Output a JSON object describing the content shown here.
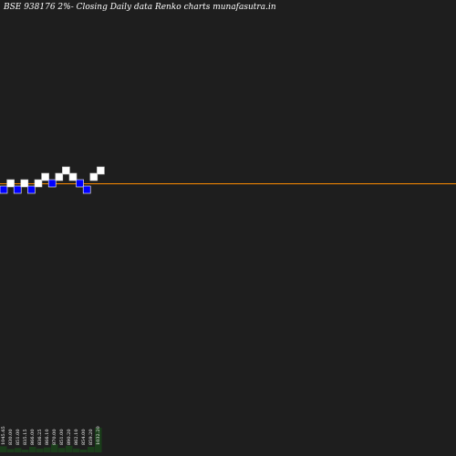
{
  "title": "BSE 938176  2%-  Closing Daily data  Renko  charts munafasutra.in",
  "colors": {
    "background": "#1e1e1e",
    "up_brick": "#ffffff",
    "down_brick": "#0000ff",
    "last_price_line": "#ff8c00",
    "volume_bar": "#1a3d1a"
  },
  "chart_data": {
    "type": "renko",
    "brick_size_percent": 2,
    "bricks": [
      {
        "direction": "down",
        "level": 0
      },
      {
        "direction": "up",
        "level": 1
      },
      {
        "direction": "down",
        "level": 0
      },
      {
        "direction": "up",
        "level": 1
      },
      {
        "direction": "down",
        "level": 0
      },
      {
        "direction": "up",
        "level": 1
      },
      {
        "direction": "up",
        "level": 2
      },
      {
        "direction": "down",
        "level": 1
      },
      {
        "direction": "up",
        "level": 2
      },
      {
        "direction": "up",
        "level": 3
      },
      {
        "direction": "up",
        "level": 2
      },
      {
        "direction": "down",
        "level": 1
      },
      {
        "direction": "down",
        "level": 0
      },
      {
        "direction": "up",
        "level": 2
      },
      {
        "direction": "up",
        "level": 3
      }
    ],
    "volume_labels": [
      "1045.65",
      "830.00",
      "851.00",
      "835.15",
      "866.00",
      "836.25",
      "866.10",
      "870.00",
      "851.00",
      "890.20",
      "862.10",
      "854.00",
      "859.20",
      "1032.20"
    ],
    "volume_values": [
      0.22,
      0.12,
      0.16,
      0.1,
      0.2,
      0.14,
      0.18,
      0.3,
      0.16,
      0.24,
      0.14,
      0.1,
      0.2,
      0.9
    ]
  }
}
